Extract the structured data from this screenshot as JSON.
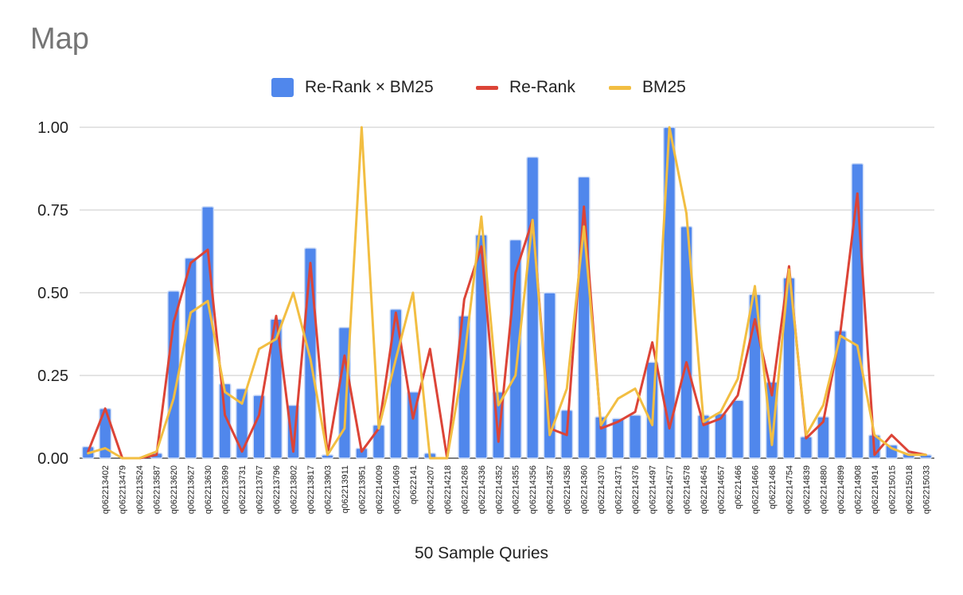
{
  "chart_data": {
    "type": "bar",
    "title": "Map",
    "xlabel": "50 Sample Quries",
    "ylabel": "",
    "ylim": [
      0,
      1
    ],
    "yticks": [
      "0.00",
      "0.25",
      "0.50",
      "0.75",
      "1.00"
    ],
    "legend_position": "top",
    "grid": true,
    "categories": [
      "",
      "q062213402",
      "q062213479",
      "q062213524",
      "q062213587",
      "q062213620",
      "q062213627",
      "q062213630",
      "q062213699",
      "q062213731",
      "q062213767",
      "q062213796",
      "q062213802",
      "q062213817",
      "q062213903",
      "q062213911",
      "q062213951",
      "q062214009",
      "q062214069",
      "q0622141",
      "q062214207",
      "q062214218",
      "q062214268",
      "q062214336",
      "q062214352",
      "q062214355",
      "q062214356",
      "q062214357",
      "q062214358",
      "q062214360",
      "q062214370",
      "q062214371",
      "q062214376",
      "q062214497",
      "q062214577",
      "q062214578",
      "q062214645",
      "q062214657",
      "q06221466",
      "q062214666",
      "q06221468",
      "q062214754",
      "q062214839",
      "q062214880",
      "q062214899",
      "q062214908",
      "q062214914",
      "q062215015",
      "q062215018",
      "q062215033"
    ],
    "series": [
      {
        "name": "Re-Rank × BM25",
        "type": "bar",
        "color": "#5087EC",
        "values": [
          0.035,
          0.15,
          0.0,
          0.0,
          0.015,
          0.505,
          0.605,
          0.76,
          0.225,
          0.21,
          0.19,
          0.42,
          0.16,
          0.635,
          0.01,
          0.395,
          0.03,
          0.1,
          0.45,
          0.2,
          0.015,
          0.0,
          0.43,
          0.675,
          0.2,
          0.66,
          0.91,
          0.5,
          0.145,
          0.85,
          0.125,
          0.12,
          0.13,
          0.29,
          1.0,
          0.7,
          0.13,
          0.135,
          0.175,
          0.495,
          0.23,
          0.545,
          0.065,
          0.125,
          0.385,
          0.89,
          0.07,
          0.04,
          0.015,
          0.01
        ]
      },
      {
        "name": "Re-Rank",
        "type": "line",
        "color": "#DC4437",
        "values": [
          0.02,
          0.15,
          0.0,
          0.0,
          0.01,
          0.41,
          0.59,
          0.63,
          0.13,
          0.02,
          0.13,
          0.43,
          0.02,
          0.59,
          0.01,
          0.31,
          0.02,
          0.09,
          0.44,
          0.12,
          0.33,
          0.0,
          0.48,
          0.64,
          0.05,
          0.56,
          0.72,
          0.09,
          0.07,
          0.76,
          0.09,
          0.11,
          0.14,
          0.35,
          0.09,
          0.29,
          0.1,
          0.12,
          0.19,
          0.42,
          0.19,
          0.58,
          0.06,
          0.11,
          0.38,
          0.8,
          0.01,
          0.07,
          0.02,
          0.01
        ]
      },
      {
        "name": "BM25",
        "type": "line",
        "color": "#F2BE42",
        "values": [
          0.015,
          0.03,
          0.0,
          0.0,
          0.02,
          0.18,
          0.44,
          0.475,
          0.2,
          0.165,
          0.33,
          0.36,
          0.5,
          0.3,
          0.01,
          0.09,
          1.0,
          0.09,
          0.3,
          0.5,
          0.0,
          0.0,
          0.3,
          0.73,
          0.16,
          0.25,
          0.72,
          0.07,
          0.21,
          0.7,
          0.1,
          0.18,
          0.21,
          0.1,
          1.0,
          0.74,
          0.11,
          0.14,
          0.24,
          0.52,
          0.04,
          0.57,
          0.07,
          0.16,
          0.37,
          0.34,
          0.07,
          0.03,
          0.01,
          0.01
        ]
      }
    ]
  }
}
